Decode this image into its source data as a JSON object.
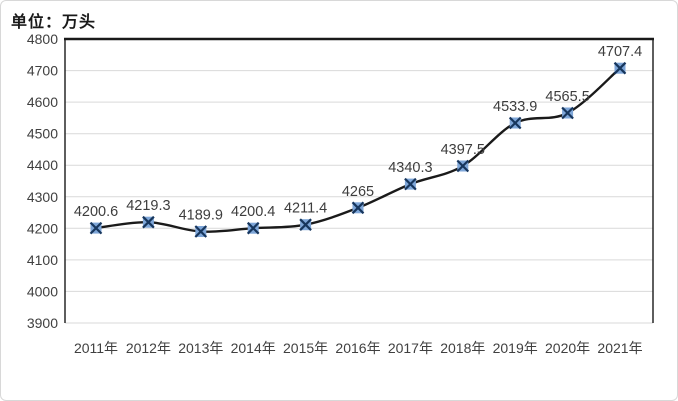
{
  "unit_label": "单位：万头",
  "chart_data": {
    "type": "line",
    "title": "",
    "xlabel": "",
    "ylabel": "单位：万头",
    "categories": [
      "2011年",
      "2012年",
      "2013年",
      "2014年",
      "2015年",
      "2016年",
      "2017年",
      "2018年",
      "2019年",
      "2020年",
      "2021年"
    ],
    "values": [
      4200.6,
      4219.3,
      4189.9,
      4200.4,
      4211.4,
      4265,
      4340.3,
      4397.5,
      4533.9,
      4565.5,
      4707.4
    ],
    "data_labels": [
      "4200.6",
      "4219.3",
      "4189.9",
      "4200.4",
      "4211.4",
      "4265",
      "4340.3",
      "4397.5",
      "4533.9",
      "4565.5",
      "4707.4"
    ],
    "ylim": [
      3900,
      4800
    ],
    "yticks": [
      3900,
      4000,
      4100,
      4200,
      4300,
      4400,
      4500,
      4600,
      4700,
      4800
    ],
    "grid": true,
    "legend": "none",
    "marker": "x-square",
    "colors": {
      "line": "#1a1a1a",
      "marker_fill": "#7ea6d8",
      "marker_x": "#17365d",
      "grid": "#d9d9d9",
      "plot_border": "#1a1a1a",
      "tick_text": "#404040",
      "label_text": "#3d3d3d",
      "card_border": "#d8d8d8"
    }
  }
}
